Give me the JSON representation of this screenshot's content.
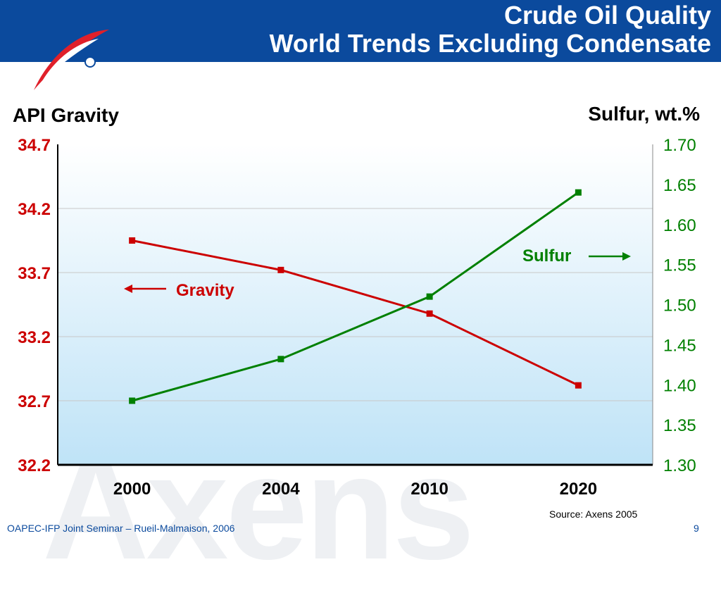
{
  "header": {
    "title_line1": "Crude Oil Quality",
    "title_line2": "World Trends Excluding Condensate"
  },
  "watermark": "Axens",
  "footer": {
    "left": "OAPEC-IFP Joint Seminar – Rueil-Malmaison, 2006",
    "page": "9"
  },
  "source": "Source: Axens 2005",
  "colors": {
    "brand_blue": "#0b4a9d",
    "gravity_red": "#cc0000",
    "sulfur_green": "#008000",
    "plot_top": "#ffffff",
    "plot_bottom": "#bfe3f7"
  },
  "logo": "IFP-logo-icon",
  "chart_data": {
    "type": "line",
    "categories": [
      "2000",
      "2004",
      "2010",
      "2020"
    ],
    "y_left": {
      "label": "API Gravity",
      "ticks": [
        "34.7",
        "34.2",
        "33.7",
        "33.2",
        "32.7",
        "32.2"
      ],
      "range": [
        32.2,
        34.7
      ]
    },
    "y_right": {
      "label": "Sulfur, wt.%",
      "ticks": [
        "1.70",
        "1.65",
        "1.60",
        "1.55",
        "1.50",
        "1.45",
        "1.40",
        "1.35",
        "1.30"
      ],
      "range": [
        1.3,
        1.7
      ]
    },
    "grid": "horizontal",
    "series": [
      {
        "name": "Gravity",
        "axis": "left",
        "color": "#cc0000",
        "values": [
          33.95,
          33.72,
          33.38,
          32.82
        ]
      },
      {
        "name": "Sulfur",
        "axis": "right",
        "color": "#008000",
        "values": [
          1.38,
          1.432,
          1.51,
          1.64
        ]
      }
    ],
    "annotations": [
      {
        "text": "Gravity",
        "arrow": "left"
      },
      {
        "text": "Sulfur",
        "arrow": "right"
      }
    ]
  }
}
